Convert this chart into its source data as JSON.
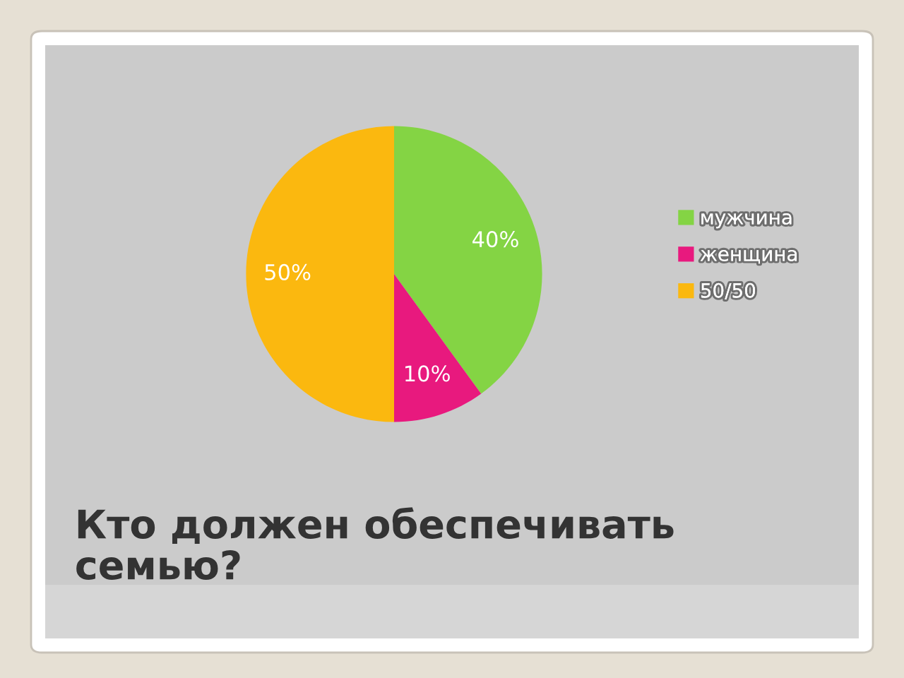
{
  "chart_data": {
    "type": "pie",
    "title": "Кто должен обеспечивать семью?",
    "categories": [
      "мужчина",
      "женщина",
      "50/50"
    ],
    "values": [
      40,
      10,
      50
    ],
    "colors": [
      "#84d444",
      "#e8197e",
      "#fbb80f"
    ],
    "value_labels": [
      "40%",
      "10%",
      "50%"
    ],
    "legend": "right"
  }
}
